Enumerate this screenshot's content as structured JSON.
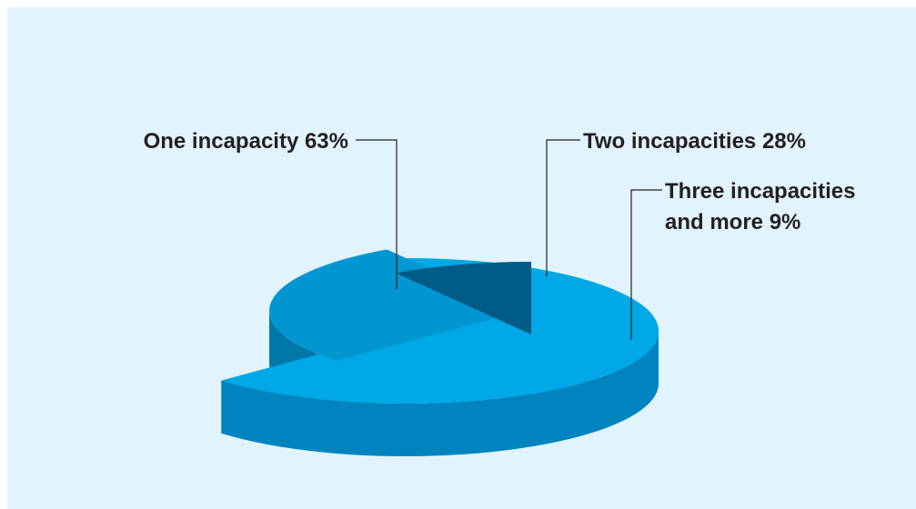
{
  "chart_data": {
    "type": "pie",
    "categories": [
      "One incapacity",
      "Two incapacities",
      "Three incapacities and more"
    ],
    "values": [
      63,
      28,
      9
    ],
    "labels": [
      {
        "lines": [
          "One incapacity 63%"
        ]
      },
      {
        "lines": [
          "Two incapacities 28%"
        ]
      },
      {
        "lines": [
          "Three incapacities",
          "and more 9%"
        ]
      }
    ],
    "colors": {
      "slice_top": [
        "#00a8e6",
        "#0096d2",
        "#005b86"
      ],
      "slice_side": [
        "#0084c0",
        "#0078ab",
        "#003b5a"
      ]
    },
    "background": "#e1f3fc"
  }
}
